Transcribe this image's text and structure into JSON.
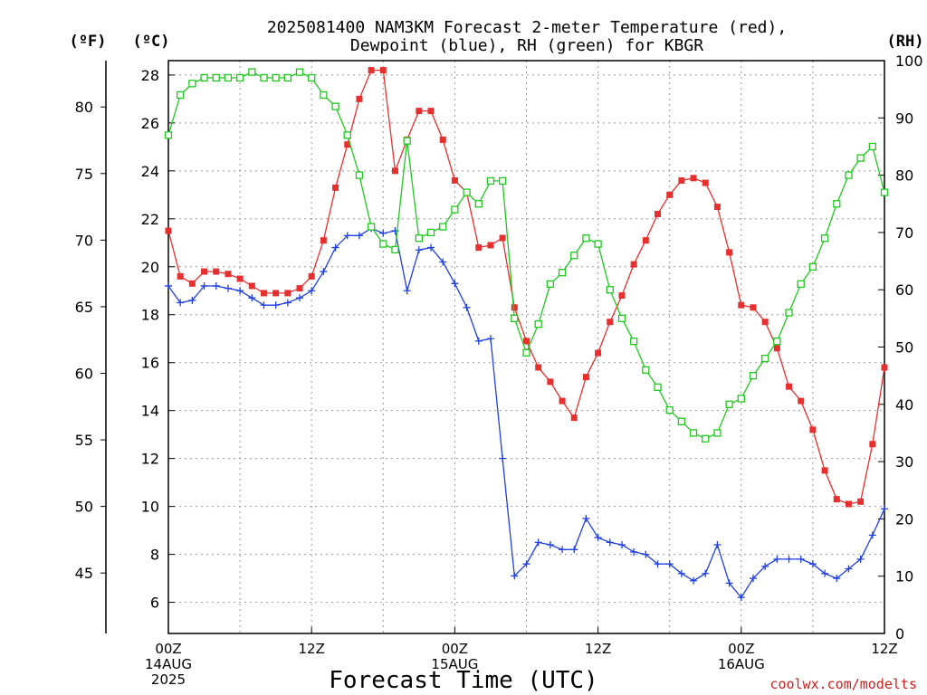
{
  "chart_data": {
    "type": "line",
    "title_line1": "2025081400 NAM3KM Forecast 2-meter Temperature (red),",
    "title_line2": "Dewpoint (blue), RH (green) for KBGR",
    "left_unit_f": "(ºF)",
    "left_unit_c": "(ºC)",
    "right_unit": "(RH)",
    "xlabel": "Forecast Time (UTC)",
    "credit": "coolwx.com/modelts",
    "x_ticks": [
      {
        "h": 0,
        "lines": [
          "00Z",
          "14AUG",
          "2025"
        ]
      },
      {
        "h": 12,
        "lines": [
          "12Z"
        ]
      },
      {
        "h": 24,
        "lines": [
          "00Z",
          "15AUG"
        ]
      },
      {
        "h": 36,
        "lines": [
          "12Z"
        ]
      },
      {
        "h": 48,
        "lines": [
          "00Z",
          "16AUG"
        ]
      },
      {
        "h": 60,
        "lines": [
          "12Z"
        ]
      }
    ],
    "x_range_hours": [
      0,
      60
    ],
    "celsius_ticks": [
      6,
      8,
      10,
      12,
      14,
      16,
      18,
      20,
      22,
      24,
      26,
      28
    ],
    "celsius_range": [
      4.7,
      28.6
    ],
    "fahrenheit_ticks": [
      45,
      50,
      55,
      60,
      65,
      70,
      75,
      80
    ],
    "rh_ticks": [
      0,
      10,
      20,
      30,
      40,
      50,
      60,
      70,
      80,
      90,
      100
    ],
    "rh_range": [
      0,
      100
    ],
    "grid": true,
    "colors": {
      "temperature": "#e63030",
      "dewpoint": "#2040e0",
      "rh": "#20c820"
    },
    "series": [
      {
        "key": "temperature",
        "unit": "C",
        "values": [
          21.5,
          19.6,
          19.3,
          19.8,
          19.8,
          19.7,
          19.5,
          19.2,
          18.9,
          18.9,
          18.9,
          19.1,
          19.6,
          21.1,
          23.3,
          25.1,
          27.0,
          28.2,
          28.2,
          24.0,
          25.3,
          26.5,
          26.5,
          25.3,
          23.6,
          23.1,
          20.8,
          20.9,
          21.2,
          18.3,
          16.9,
          15.8,
          15.2,
          14.4,
          13.7,
          15.4,
          16.4,
          17.7,
          18.8,
          20.1,
          21.1,
          22.2,
          23.0,
          23.6,
          23.7,
          23.5,
          22.5,
          20.6,
          18.4,
          18.3,
          17.7,
          16.6,
          15.0,
          14.4,
          13.2,
          11.5,
          10.3,
          10.1,
          10.2,
          12.6,
          15.8
        ]
      },
      {
        "key": "dewpoint",
        "unit": "C",
        "values": [
          19.2,
          18.5,
          18.6,
          19.2,
          19.2,
          19.1,
          19.0,
          18.7,
          18.4,
          18.4,
          18.5,
          18.7,
          19.0,
          19.8,
          20.8,
          21.3,
          21.3,
          21.6,
          21.4,
          21.5,
          19.0,
          20.7,
          20.8,
          20.2,
          19.3,
          18.3,
          16.9,
          17.0,
          12.0,
          7.1,
          7.6,
          8.5,
          8.4,
          8.2,
          8.2,
          9.5,
          8.7,
          8.5,
          8.4,
          8.1,
          8.0,
          7.6,
          7.6,
          7.2,
          6.9,
          7.2,
          8.4,
          6.8,
          6.2,
          7.0,
          7.5,
          7.8,
          7.8,
          7.8,
          7.6,
          7.2,
          7.0,
          7.4,
          7.8,
          8.8,
          9.9
        ]
      },
      {
        "key": "rh",
        "unit": "%",
        "values": [
          87,
          94,
          96,
          97,
          97,
          97,
          97,
          98,
          97,
          97,
          97,
          98,
          97,
          94,
          92,
          87,
          80,
          71,
          68,
          67,
          86,
          69,
          70,
          71,
          74,
          77,
          75,
          79,
          79,
          55,
          49,
          54,
          61,
          63,
          66,
          69,
          68,
          60,
          55,
          51,
          46,
          43,
          39,
          37,
          35,
          34,
          35,
          40,
          41,
          45,
          48,
          51,
          56,
          61,
          64,
          69,
          75,
          80,
          83,
          85,
          77
        ]
      }
    ]
  }
}
